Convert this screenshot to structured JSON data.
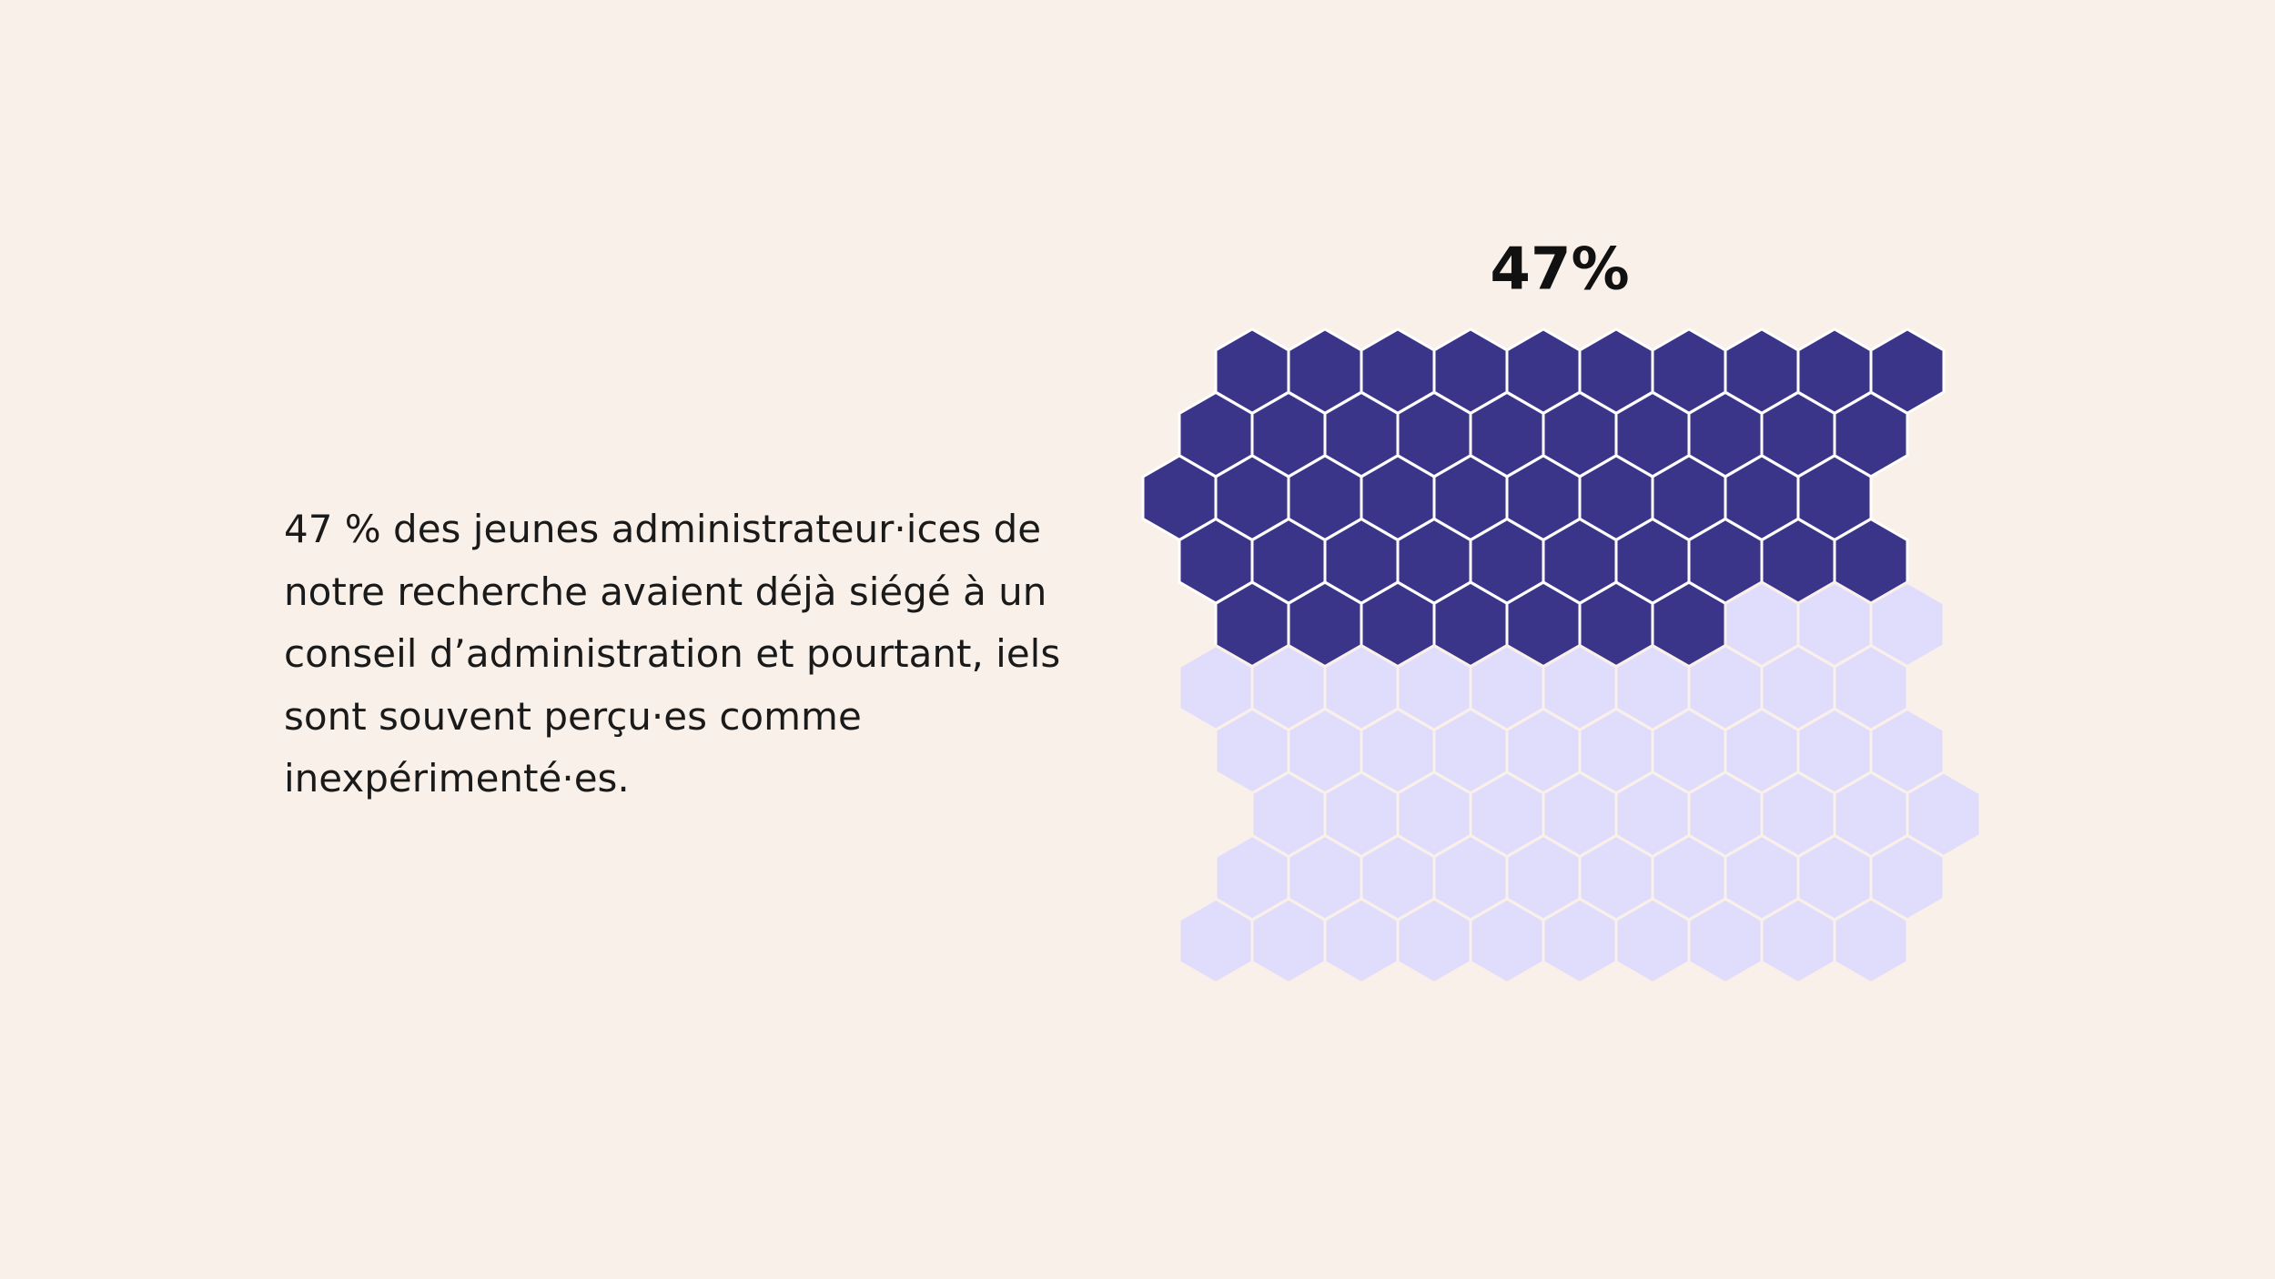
{
  "chart_data": {
    "type": "hex-waffle",
    "values": [
      47
    ],
    "value_labels": [
      "47%"
    ],
    "color": "#3b3589",
    "empty_color": "#e0dcfc",
    "description": "47 % des jeunes administrateur·ices de notre recherche avaient déjà siégé à un conseil d’administration et pourtant, iels sont souvent perçu·es comme inexpérimenté·es."
  }
}
